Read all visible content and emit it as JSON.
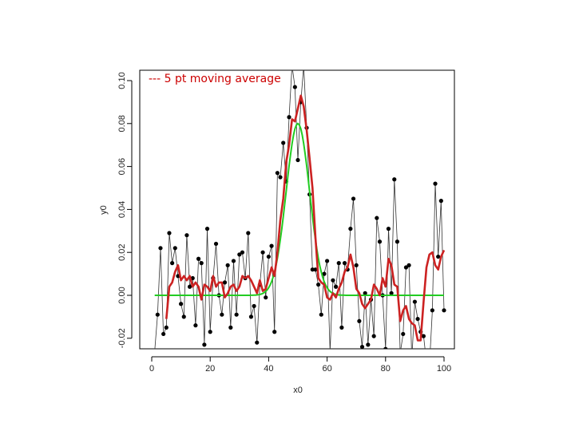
{
  "chart_data": {
    "type": "line",
    "title": "",
    "xlabel": "x0",
    "ylabel": "y0",
    "xlim": [
      0,
      105
    ],
    "ylim": [
      -0.025,
      0.105
    ],
    "x_ticks": [
      0,
      20,
      40,
      60,
      80,
      100
    ],
    "y_ticks": [
      -0.02,
      0.0,
      0.02,
      0.04,
      0.06,
      0.08,
      0.1
    ],
    "x_tick_labels": [
      "0",
      "20",
      "40",
      "60",
      "80",
      "100"
    ],
    "y_tick_labels": [
      "-0.02",
      "0.00",
      "0.02",
      "0.04",
      "0.06",
      "0.08",
      "0.10"
    ],
    "grid": false,
    "annotation": "--- 5 pt moving average",
    "annotation_color": "#cc0000",
    "series": [
      {
        "style": "points-connected",
        "color": "#000000",
        "x": [
          1,
          2,
          3,
          4,
          5,
          6,
          7,
          8,
          9,
          10,
          11,
          12,
          13,
          14,
          15,
          16,
          17,
          18,
          19,
          20,
          21,
          22,
          23,
          24,
          25,
          26,
          27,
          28,
          29,
          30,
          31,
          32,
          33,
          34,
          35,
          36,
          37,
          38,
          39,
          40,
          41,
          42,
          43,
          44,
          45,
          46,
          47,
          48,
          49,
          50,
          51,
          52,
          53,
          54,
          55,
          56,
          57,
          58,
          59,
          60,
          61,
          62,
          63,
          64,
          65,
          66,
          67,
          68,
          69,
          70,
          71,
          72,
          73,
          74,
          75,
          76,
          77,
          78,
          79,
          80,
          81,
          82,
          83,
          84,
          85,
          86,
          87,
          88,
          89,
          90,
          91,
          92,
          93,
          94,
          95,
          96,
          97,
          98,
          99,
          100
        ],
        "y": [
          -0.026,
          -0.009,
          0.022,
          -0.018,
          -0.015,
          0.029,
          0.015,
          0.022,
          0.009,
          -0.004,
          -0.01,
          0.028,
          0.004,
          0.008,
          -0.014,
          0.017,
          0.015,
          -0.023,
          0.031,
          -0.017,
          0.008,
          0.024,
          0.0,
          -0.009,
          0.006,
          0.014,
          -0.015,
          0.016,
          -0.009,
          0.019,
          0.02,
          0.008,
          0.029,
          -0.01,
          -0.005,
          -0.022,
          0.005,
          0.02,
          -0.001,
          0.018,
          0.023,
          -0.017,
          0.057,
          0.055,
          0.071,
          0.053,
          0.083,
          0.107,
          0.097,
          0.063,
          0.09,
          0.107,
          0.078,
          0.047,
          0.012,
          0.012,
          0.005,
          -0.009,
          0.01,
          0.016,
          -0.026,
          0.007,
          0.004,
          0.015,
          -0.015,
          0.015,
          0.012,
          0.031,
          0.045,
          0.014,
          -0.012,
          -0.024,
          0.001,
          -0.023,
          -0.002,
          -0.019,
          0.036,
          0.025,
          0.0,
          -0.025,
          0.031,
          0.001,
          0.054,
          0.025,
          -0.027,
          -0.018,
          0.013,
          0.014,
          -0.03,
          -0.003,
          -0.011,
          -0.017,
          -0.019,
          -0.031,
          -0.033,
          -0.007,
          0.052,
          0.018,
          0.044,
          -0.007
        ]
      },
      {
        "style": "line",
        "color": "#cc2222",
        "x": [
          5,
          6,
          7,
          8,
          9,
          10,
          11,
          12,
          13,
          14,
          15,
          16,
          17,
          18,
          19,
          20,
          21,
          22,
          23,
          24,
          25,
          26,
          27,
          28,
          29,
          30,
          31,
          32,
          33,
          34,
          35,
          36,
          37,
          38,
          39,
          40,
          41,
          42,
          43,
          44,
          45,
          46,
          47,
          48,
          49,
          50,
          51,
          52,
          53,
          54,
          55,
          56,
          57,
          58,
          59,
          60,
          61,
          62,
          63,
          64,
          65,
          66,
          67,
          68,
          69,
          70,
          71,
          72,
          73,
          74,
          75,
          76,
          77,
          78,
          79,
          80,
          81,
          82,
          83,
          84,
          85,
          86,
          87,
          88,
          89,
          90,
          91,
          92,
          93,
          94,
          95,
          96,
          97,
          98,
          99,
          100
        ],
        "y": [
          -0.011,
          0.004,
          0.006,
          0.011,
          0.014,
          0.007,
          0.009,
          0.007,
          0.009,
          0.004,
          0.006,
          0.004,
          -0.002,
          0.005,
          0.004,
          0.002,
          0.009,
          0.004,
          0.006,
          0.006,
          -0.001,
          0.001,
          0.004,
          0.005,
          0.002,
          0.004,
          0.009,
          0.008,
          0.009,
          0.007,
          0.004,
          0.001,
          0.007,
          0.002,
          0.003,
          0.008,
          0.013,
          0.009,
          0.02,
          0.035,
          0.045,
          0.062,
          0.07,
          0.082,
          0.081,
          0.087,
          0.093,
          0.088,
          0.077,
          0.064,
          0.05,
          0.027,
          0.008,
          0.006,
          0.005,
          -0.001,
          -0.002,
          0.001,
          -0.001,
          0.003,
          0.006,
          0.011,
          0.013,
          0.019,
          0.013,
          0.003,
          0.001,
          -0.004,
          -0.006,
          -0.004,
          -0.002,
          0.005,
          0.003,
          0.0,
          0.008,
          0.004,
          0.017,
          0.014,
          0.005,
          0.004,
          -0.012,
          -0.007,
          -0.005,
          -0.011,
          -0.013,
          -0.014,
          -0.021,
          -0.021,
          -0.003,
          0.013,
          0.019,
          0.02,
          0.014,
          0.012,
          0.018,
          0.021
        ]
      },
      {
        "style": "line",
        "color": "#22cc22",
        "function": "gaussian",
        "x_range": [
          1,
          100
        ],
        "center": 50,
        "amplitude": 0.08,
        "sigma": 4
      }
    ]
  }
}
